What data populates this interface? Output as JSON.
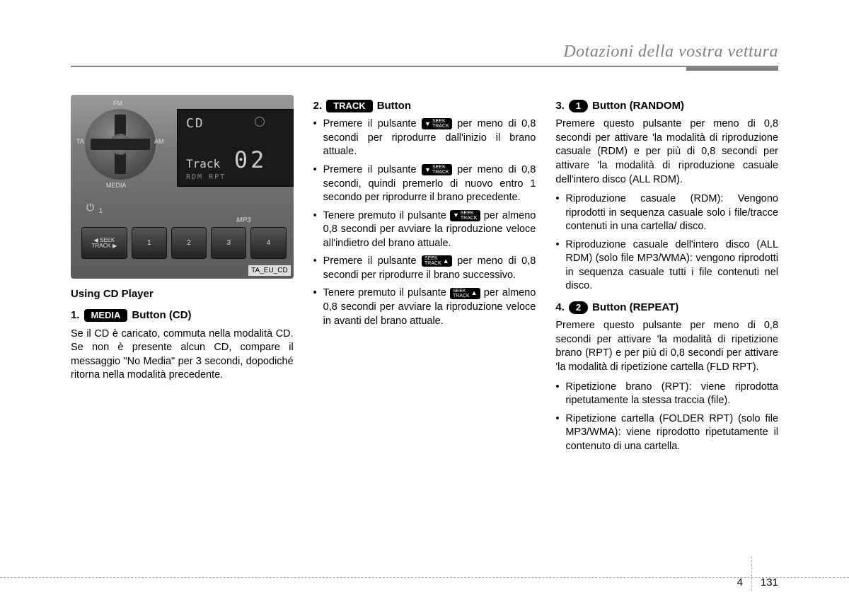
{
  "header": {
    "title": "Dotazioni della vostra vettura"
  },
  "radio": {
    "fm": "FM",
    "am": "AM",
    "ta": "TA",
    "media": "MEDIA",
    "display_mode": "CD",
    "display_line": "Track",
    "display_num": "02",
    "display_bottom": "RDM  RPT",
    "caption": "TA_EU_CD",
    "mp3": "MP3",
    "preset_labels": [
      "1",
      "2",
      "3",
      "4"
    ],
    "top_nums": [
      "1",
      "2",
      "3",
      "4"
    ],
    "seek_label": "SEEK\nTRACK"
  },
  "col1": {
    "heading": "Using CD Player",
    "item1_num": "1.",
    "item1_pill": "MEDIA",
    "item1_suffix": "Button (CD)",
    "item1_body": "Se il CD è caricato, commuta nella modalità CD. Se non è presente alcun CD, compare il messaggio \"No Media\" per 3 secondi, dopodiché ritorna nella modalità precedente."
  },
  "col2": {
    "item2_num": "2.",
    "item2_pill": "TRACK",
    "item2_suffix": "Button",
    "b1a": "Premere il pulsante ",
    "b1b": " per meno di 0,8 secondi per riprodurre dall'inizio il brano attuale.",
    "b2a": "Premere il pulsante ",
    "b2b": " per meno di 0,8 secondi, quindi premerlo di nuovo entro 1 secondo per riprodurre il brano precedente.",
    "b3a": "Tenere premuto il pulsante ",
    "b3b": " per almeno 0,8 secondi per avviare la riproduzione veloce all'indietro del brano attuale.",
    "b4a": "Premere il pulsante ",
    "b4b": " per meno di 0,8 secondi per riprodurre il brano successivo.",
    "b5a": "Tenere premuto il pulsante ",
    "b5b": " per almeno 0,8 secondi per avviare la riproduzione veloce in avanti del brano attuale.",
    "seek_down_a": "SEEK",
    "seek_down_b": "TRACK",
    "seek_up_a": "SEEK",
    "seek_up_b": "TRACK"
  },
  "col3": {
    "item3_num": "3.",
    "item3_pill": "1",
    "item3_suffix": "Button (RANDOM)",
    "item3_body": "Premere questo pulsante per meno di 0,8 secondi per attivare 'la modalità di riproduzione casuale (RDM) e per più di 0,8 secondi per attivare 'la modalità di riproduzione casuale dell'intero disco (ALL RDM).",
    "item3_b1": "Riproduzione casuale (RDM): Vengono riprodotti in sequenza casuale solo i file/tracce contenuti in una cartella/ disco.",
    "item3_b2": "Riproduzione casuale dell'intero disco (ALL RDM) (solo file MP3/WMA): vengono riprodotti in sequenza casuale tutti i file contenuti nel disco.",
    "item4_num": "4.",
    "item4_pill": "2",
    "item4_suffix": "Button (REPEAT)",
    "item4_body": "Premere questo pulsante per meno di 0,8 secondi per attivare 'la modalità di ripetizione brano (RPT) e per più di 0,8 secondi per attivare 'la modalità di ripetizione cartella (FLD RPT).",
    "item4_b1": "Ripetizione brano (RPT): viene riprodotta ripetutamente la stessa traccia (file).",
    "item4_b2": "Ripetizione cartella (FOLDER RPT) (solo file MP3/WMA): viene riprodotto ripetutamente il contenuto di una cartella."
  },
  "footer": {
    "chapter": "4",
    "page": "131"
  }
}
